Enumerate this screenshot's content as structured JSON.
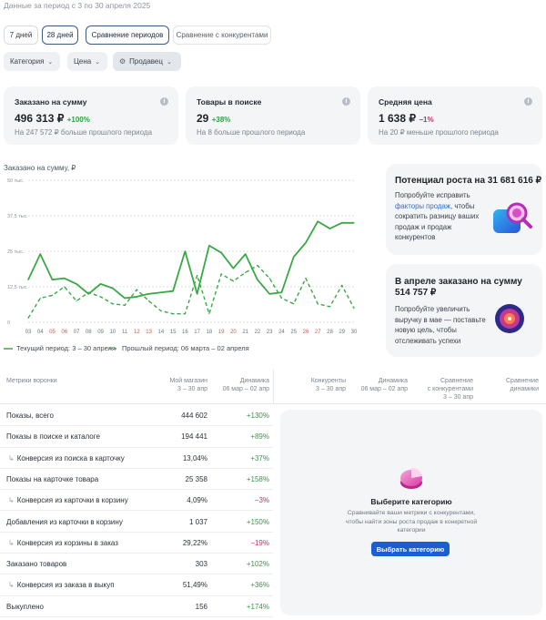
{
  "period_note": "Данные за период с 3 по 30 апреля 2025",
  "period_buttons": [
    "7 дней",
    "28 дней",
    "Сравнение периодов",
    "Сравнение с конкурентами"
  ],
  "filters": {
    "category": "Категория",
    "price": "Цена",
    "seller": "Продавец"
  },
  "cards": [
    {
      "title": "Заказано на сумму",
      "value": "496 313 ₽",
      "delta": "+100%",
      "sub": "На 247 572 ₽ больше прошлого периода"
    },
    {
      "title": "Товары в поиске",
      "value": "29",
      "delta": "+38%",
      "sub": "На 8 больше прошлого периода"
    },
    {
      "title": "Средняя цена",
      "value": "1 638 ₽",
      "delta": "−1%",
      "sub": "На 20 ₽ меньше прошлого периода"
    }
  ],
  "chart_data": {
    "type": "line",
    "title": "Заказано на сумму, ₽",
    "y_ticks": [
      "50 тыс.",
      "37,5 тыс.",
      "25 тыс.",
      "12,5 тыс.",
      "0"
    ],
    "ylim": [
      0,
      50000
    ],
    "x": [
      "03",
      "04",
      "05",
      "06",
      "07",
      "08",
      "09",
      "10",
      "11",
      "12",
      "13",
      "14",
      "15",
      "16",
      "17",
      "18",
      "19",
      "20",
      "21",
      "22",
      "23",
      "24",
      "25",
      "26",
      "27",
      "28",
      "29",
      "30"
    ],
    "x_weekend": [
      "05",
      "06",
      "12",
      "13",
      "19",
      "20",
      "26",
      "27"
    ],
    "series": [
      {
        "name": "Текущий период: 3 – 30 апреля",
        "color": "#3aa845",
        "style": "solid",
        "values": [
          15000,
          24000,
          15000,
          15500,
          13500,
          10000,
          13500,
          12000,
          8500,
          9000,
          10000,
          10500,
          11000,
          25000,
          10000,
          27000,
          24500,
          19000,
          24000,
          15000,
          10000,
          10500,
          23000,
          28000,
          35500,
          33000,
          35000,
          35000
        ]
      },
      {
        "name": "Прошлый период: 06 марта – 02 апреля",
        "color": "#3aa845",
        "style": "dashed",
        "values": [
          1500,
          8500,
          9500,
          12500,
          7500,
          10500,
          9000,
          6500,
          6000,
          11500,
          7500,
          4000,
          3000,
          3000,
          16500,
          3000,
          17000,
          14500,
          17500,
          20000,
          15500,
          8500,
          6500,
          15500,
          6500,
          5500,
          13000,
          5000
        ]
      }
    ]
  },
  "promo1": {
    "title": "Потенциал роста на 31 681 616 ₽",
    "text_before": "Попробуйте исправить",
    "link": "факторы продаж",
    "text_after": ", чтобы сократить разницу ваших продаж и продаж конкурентов"
  },
  "promo2": {
    "title_line1": "В апреле заказано на сумму",
    "title_line2": "514 757 ₽",
    "text": "Попробуйте увеличить выручку в мае — поставьте новую цель, чтобы отслеживать успехи"
  },
  "table": {
    "headers": {
      "metrics": "Метрики воронки",
      "my_store": "Мой магазин",
      "my_store_period": "3 – 30 апр",
      "dynamics": "Динамика",
      "dynamics_period": "06 мар – 02 апр",
      "competitors": "Конкуренты",
      "competitors_period": "3 – 30 апр",
      "dynamics2": "Динамика",
      "dynamics2_period": "06 мар – 02 апр",
      "comparison": "Сравнение",
      "comparison_sub": "с конкурентами",
      "comparison_period": "3 – 30 апр",
      "comparison_dyn": "Сравнение",
      "comparison_dyn_sub": "динамики"
    },
    "rows": [
      {
        "label": "Показы, всего",
        "value": "444 602",
        "dyn": "+130%",
        "dir": "up",
        "sub": false
      },
      {
        "label": "Показы в поиске и каталоге",
        "value": "194 441",
        "dyn": "+89%",
        "dir": "up",
        "sub": false
      },
      {
        "label": "Конверсия из поиска в карточку",
        "value": "13,04%",
        "dyn": "+37%",
        "dir": "up",
        "sub": true
      },
      {
        "label": "Показы на карточке товара",
        "value": "25 358",
        "dyn": "+158%",
        "dir": "up",
        "sub": false
      },
      {
        "label": "Конверсия из карточки в корзину",
        "value": "4,09%",
        "dyn": "−3%",
        "dir": "down",
        "sub": true
      },
      {
        "label": "Добавления из карточки в корзину",
        "value": "1 037",
        "dyn": "+150%",
        "dir": "up",
        "sub": false
      },
      {
        "label": "Конверсия из корзины в заказ",
        "value": "29,22%",
        "dyn": "−19%",
        "dir": "down",
        "sub": true
      },
      {
        "label": "Заказано товаров",
        "value": "303",
        "dyn": "+102%",
        "dir": "up",
        "sub": false
      },
      {
        "label": "Конверсия из заказа в выкуп",
        "value": "51,49%",
        "dyn": "+36%",
        "dir": "up",
        "sub": true
      },
      {
        "label": "Выкуплено",
        "value": "156",
        "dyn": "+174%",
        "dir": "up",
        "sub": false
      }
    ]
  },
  "empty_state": {
    "title": "Выберите категорию",
    "text_line1": "Сравнивайте ваши метрики с конкурентами,",
    "text_line2": "чтобы найти зоны роста продаж в конкретной",
    "text_line3": "категории",
    "button": "Выбрать категорию"
  },
  "colors": {
    "accent": "#1a5fd1",
    "up": "#2ea043",
    "down": "#c53060",
    "series": "#3aa845"
  }
}
